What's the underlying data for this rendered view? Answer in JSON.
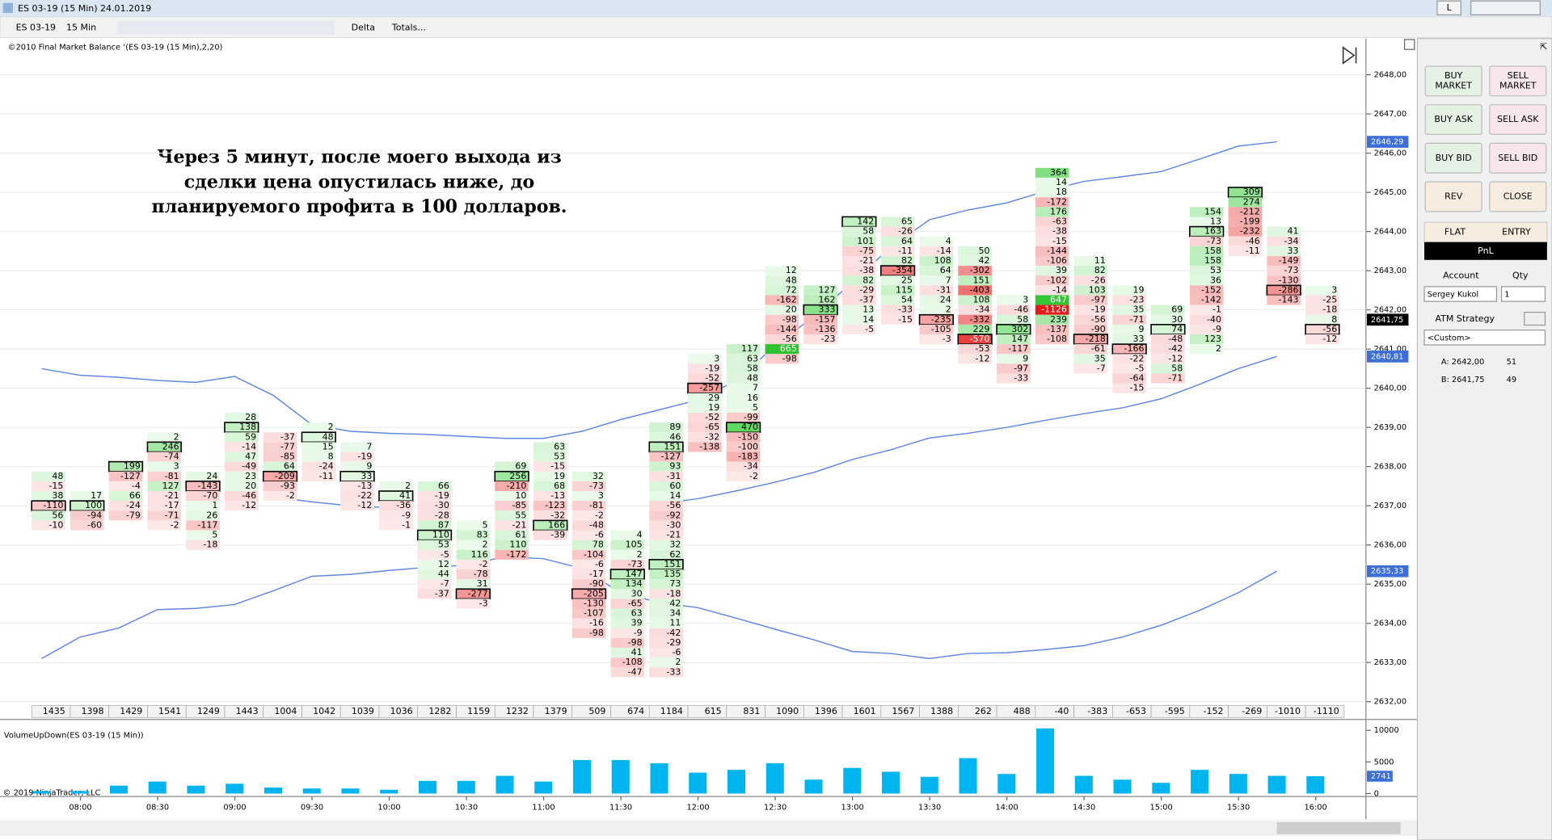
{
  "window": {
    "title": "ES 03-19 (15 Min)  24.01.2019",
    "mode": "L"
  },
  "toolbar": {
    "instrument": "ES 03-19",
    "interval": "15 Min",
    "column": "Delta",
    "totals": "Totals..."
  },
  "chart": {
    "indicator": "©2010 Final Market Balance ‘(ES 03-19 (15 Min),2,20)",
    "annotation": [
      "Через 5 минут, после моего выхода из",
      "сделки цена опустилась ниже, до",
      "планируемого профита в 100 долларов."
    ],
    "ylim": [
      2631.95,
      2648.85
    ],
    "yticks": [
      {
        "value": 2632,
        "label": "2632,00"
      },
      {
        "value": 2633,
        "label": "2633,00"
      },
      {
        "value": 2634,
        "label": "2634,00"
      },
      {
        "value": 2635,
        "label": "2635,00"
      },
      {
        "value": 2636,
        "label": "2636,00"
      },
      {
        "value": 2637,
        "label": "2637,00"
      },
      {
        "value": 2638,
        "label": "2638,00"
      },
      {
        "value": 2639,
        "label": "2639,00"
      },
      {
        "value": 2640,
        "label": "2640,00"
      },
      {
        "value": 2641,
        "label": "2641,00"
      },
      {
        "value": 2642,
        "label": "2642,00"
      },
      {
        "value": 2643,
        "label": "2643,00"
      },
      {
        "value": 2644,
        "label": "2644,00"
      },
      {
        "value": 2645,
        "label": "2645,00"
      },
      {
        "value": 2646,
        "label": "2646,00"
      },
      {
        "value": 2647,
        "label": "2647,00"
      },
      {
        "value": 2648,
        "label": "2648,00"
      }
    ],
    "columns": [
      {
        "high": 2637.75,
        "values": [
          48,
          -15,
          38,
          -110,
          56,
          -10
        ],
        "delta": 1435,
        "volume": 400
      },
      {
        "high": 2637.25,
        "values": [
          17,
          100,
          -94,
          -60
        ],
        "delta": 1398,
        "volume": 400
      },
      {
        "high": 2638.0,
        "values": [
          199,
          -127,
          -4,
          66,
          -24,
          -79
        ],
        "delta": 1429,
        "volume": 1250
      },
      {
        "high": 2638.75,
        "values": [
          2,
          246,
          -74,
          3,
          -81,
          127,
          -21,
          -17,
          -71,
          -2
        ],
        "delta": 1541,
        "volume": 1900
      },
      {
        "high": 2637.75,
        "values": [
          24,
          -143,
          -70,
          1,
          26,
          -117,
          5,
          -18
        ],
        "delta": 1249,
        "volume": 1250
      },
      {
        "high": 2639.25,
        "values": [
          28,
          138,
          59,
          -14,
          47,
          -49,
          23,
          20,
          -46,
          -12
        ],
        "delta": 1443,
        "volume": 1550
      },
      {
        "high": 2638.75,
        "values": [
          -37,
          -77,
          -85,
          64,
          -209,
          -93,
          -2
        ],
        "delta": 1004,
        "volume": 950
      },
      {
        "high": 2639.0,
        "values": [
          2,
          48,
          15,
          8,
          -24,
          -11
        ],
        "delta": 1042,
        "volume": 800
      },
      {
        "high": 2638.5,
        "values": [
          7,
          -19,
          9,
          33,
          -13,
          -22,
          -12
        ],
        "delta": 1039,
        "volume": 800
      },
      {
        "high": 2637.5,
        "values": [
          2,
          41,
          -36,
          -9,
          -1
        ],
        "delta": 1036,
        "volume": 600
      },
      {
        "high": 2637.5,
        "values": [
          66,
          -19,
          -30,
          -28,
          87,
          110,
          53,
          -5,
          12,
          44,
          -7,
          -37
        ],
        "delta": 1282,
        "volume": 2000
      },
      {
        "high": 2636.5,
        "values": [
          5,
          83,
          2,
          116,
          -2,
          -78,
          31,
          -277,
          -3
        ],
        "delta": 1159,
        "volume": 2000
      },
      {
        "high": 2638.0,
        "values": [
          69,
          256,
          -210,
          10,
          -85,
          55,
          -21,
          61,
          110,
          -172
        ],
        "delta": 1232,
        "volume": 2800
      },
      {
        "high": 2638.5,
        "values": [
          63,
          53,
          -15,
          19,
          68,
          -13,
          -123,
          -32,
          166,
          -39
        ],
        "delta": 1379,
        "volume": 1900
      },
      {
        "high": 2637.75,
        "values": [
          32,
          -73,
          3,
          -81,
          -2,
          -48,
          -6,
          78,
          -104,
          -6,
          -17,
          -90,
          -205,
          -130,
          -107,
          -16,
          -98
        ],
        "delta": 509,
        "volume": 5300
      },
      {
        "high": 2636.25,
        "values": [
          4,
          105,
          2,
          -73,
          147,
          134,
          30,
          -65,
          63,
          39,
          -9,
          -98,
          41,
          -108,
          -47
        ],
        "delta": 674,
        "volume": 5300
      },
      {
        "high": 2639.0,
        "values": [
          89,
          46,
          151,
          -127,
          93,
          -31,
          60,
          14,
          -56,
          -92,
          -30,
          -21,
          32,
          62,
          151,
          135,
          73,
          -18,
          42,
          34,
          11,
          -42,
          -29,
          -6,
          2,
          -33
        ],
        "delta": 1184,
        "volume": 4800
      },
      {
        "high": 2640.75,
        "values": [
          3,
          -19,
          -52,
          -257,
          29,
          19,
          -52,
          -65,
          -32,
          -138
        ],
        "delta": 615,
        "volume": 3300
      },
      {
        "high": 2641.0,
        "values": [
          117,
          63,
          58,
          48,
          7,
          16,
          5,
          -99,
          470,
          -150,
          -100,
          -183,
          -34,
          -2
        ],
        "delta": 831,
        "volume": 3750
      },
      {
        "high": 2643.0,
        "values": [
          12,
          48,
          72,
          -162,
          20,
          -98,
          -144,
          -56,
          665,
          -98
        ],
        "delta": 1090,
        "volume": 4800
      },
      {
        "high": 2642.5,
        "values": [
          127,
          162,
          333,
          -157,
          -136,
          -23
        ],
        "delta": 1396,
        "volume": 2200
      },
      {
        "high": 2644.25,
        "values": [
          142,
          58,
          101,
          -75,
          -21,
          -38,
          82,
          -29,
          -37,
          13,
          14,
          -5
        ],
        "delta": 1601,
        "volume": 4050
      },
      {
        "high": 2644.25,
        "values": [
          65,
          -26,
          64,
          -11,
          82,
          -354,
          25,
          115,
          54,
          -33,
          -15
        ],
        "delta": 1567,
        "volume": 3450
      },
      {
        "high": 2643.75,
        "values": [
          4,
          -14,
          108,
          64,
          7,
          -31,
          24,
          2,
          -235,
          -105,
          -3
        ],
        "delta": 1388,
        "volume": 2650
      },
      {
        "high": 2643.5,
        "values": [
          50,
          42,
          -302,
          151,
          -403,
          108,
          -34,
          -332,
          229,
          -570,
          -53,
          -12
        ],
        "delta": 262,
        "volume": 5600
      },
      {
        "high": 2642.25,
        "values": [
          3,
          -46,
          58,
          302,
          147,
          -117,
          9,
          -97,
          -33
        ],
        "delta": 488,
        "volume": 3100
      },
      {
        "high": 2645.5,
        "values": [
          364,
          14,
          18,
          -172,
          176,
          -63,
          -38,
          -15,
          -144,
          -106,
          39,
          -102,
          -14,
          647,
          -1126,
          239,
          -137,
          -108
        ],
        "delta": -40,
        "volume": 10300
      },
      {
        "high": 2643.25,
        "values": [
          11,
          82,
          -26,
          103,
          -97,
          -19,
          -56,
          -90,
          -218,
          -61,
          35,
          -7
        ],
        "delta": -383,
        "volume": 2800
      },
      {
        "high": 2642.5,
        "values": [
          19,
          -23,
          35,
          -71,
          9,
          33,
          -166,
          -22,
          -5,
          -64,
          -15
        ],
        "delta": -653,
        "volume": 2200
      },
      {
        "high": 2642.0,
        "values": [
          69,
          30,
          74,
          -48,
          -42,
          -12,
          58,
          -71
        ],
        "delta": -595,
        "volume": 1700
      },
      {
        "high": 2644.5,
        "values": [
          154,
          13,
          163,
          -73,
          158,
          158,
          53,
          36,
          -152,
          -142,
          -1,
          -40,
          -9,
          123,
          2
        ],
        "delta": -152,
        "volume": 3750
      },
      {
        "high": 2645.0,
        "values": [
          309,
          274,
          -212,
          -199,
          -232,
          -46,
          -11
        ],
        "delta": -269,
        "volume": 3100
      },
      {
        "high": 2644.0,
        "values": [
          41,
          -34,
          33,
          -149,
          -73,
          -130,
          -286,
          -143
        ],
        "delta": -1010,
        "volume": 2800
      },
      {
        "high": 2642.5,
        "values": [
          3,
          -25,
          -18,
          8,
          -56,
          -12
        ],
        "delta": -1110,
        "volume": 2741
      }
    ],
    "bands": [
      {
        "color": "#5f87e3",
        "values": [
          2640.5,
          2640.33,
          2640.28,
          2640.2,
          2640.15,
          2640.3,
          2639.82,
          2639.07,
          2638.9,
          2638.85,
          2638.82,
          2638.77,
          2638.72,
          2638.72,
          2638.9,
          2639.2,
          2639.45,
          2639.7,
          2640.2,
          2641.08,
          2641.83,
          2642.7,
          2643.6,
          2644.3,
          2644.55,
          2644.73,
          2645.03,
          2645.28,
          2645.4,
          2645.53,
          2645.85,
          2646.18,
          2646.29,
          null
        ]
      },
      {
        "color": "#5f87e3",
        "values": [
          null,
          null,
          null,
          null,
          null,
          null,
          2637.23,
          2637.1,
          2637.0,
          2636.95,
          null,
          null,
          null,
          null,
          null,
          null,
          2637.05,
          2637.18,
          2637.38,
          2637.6,
          2637.85,
          2638.18,
          2638.43,
          2638.73,
          2638.85,
          2639.0,
          2639.18,
          2639.35,
          2639.5,
          2639.73,
          2640.1,
          2640.5,
          2640.81,
          null
        ]
      },
      {
        "color": "#5f87e3",
        "values": [
          2633.1,
          2633.65,
          2633.88,
          2634.35,
          2634.38,
          2634.48,
          2634.83,
          2635.2,
          2635.25,
          2635.35,
          2635.43,
          2635.48,
          2635.7,
          2635.65,
          2635.4,
          2634.78,
          2634.53,
          2634.4,
          2634.13,
          2633.85,
          2633.58,
          2633.28,
          2633.23,
          2633.1,
          2633.23,
          2633.25,
          2633.33,
          2633.43,
          2633.65,
          2633.95,
          2634.33,
          2634.78,
          2635.33,
          null
        ]
      }
    ],
    "markers": [
      {
        "value": 2646.29,
        "label": "2646,29",
        "color": "#3d6fd6"
      },
      {
        "value": 2641.75,
        "label": "2641,75",
        "color": "#000000"
      },
      {
        "value": 2640.81,
        "label": "2640,81",
        "color": "#3d6fd6"
      },
      {
        "value": 2635.33,
        "label": "2635,33",
        "color": "#3d6fd6"
      }
    ],
    "time_labels": [
      "08:00",
      "08:30",
      "09:00",
      "09:30",
      "10:00",
      "10:30",
      "11:00",
      "11:30",
      "12:00",
      "12:30",
      "13:00",
      "13:30",
      "14:00",
      "14:30",
      "15:00",
      "15:30",
      "16:00"
    ],
    "volume": {
      "title": "VolumeUpDown(ES 03-19 (15 Min))",
      "ylim": [
        0,
        11250
      ],
      "yticks": [
        0,
        5000,
        10000
      ],
      "color": "#00b4f0",
      "marker_color": "#3d6fd6"
    },
    "copyright": "© 2019 NinjaTrader, LLC"
  },
  "order_panel": {
    "buttons": [
      {
        "lines": [
          "BUY",
          "MARKET"
        ],
        "color": "#e6f1e6"
      },
      {
        "lines": [
          "SELL",
          "MARKET"
        ],
        "color": "#f7e6ea"
      },
      {
        "lines": [
          "BUY ASK"
        ],
        "color": "#e6f1e6"
      },
      {
        "lines": [
          "SELL ASK"
        ],
        "color": "#f7e6ea"
      },
      {
        "lines": [
          "BUY BID"
        ],
        "color": "#e6f1e6"
      },
      {
        "lines": [
          "SELL BID"
        ],
        "color": "#f7e6ea"
      },
      {
        "lines": [
          "REV"
        ],
        "color": "#f6ece0"
      },
      {
        "lines": [
          "CLOSE"
        ],
        "color": "#f6ece0"
      }
    ],
    "tabs": [
      "FLAT",
      "ENTRY"
    ],
    "pnl": "PnL",
    "account_label": "Account",
    "account": "Sergey Kukol",
    "qty_label": "Qty",
    "qty": 1,
    "atm_label": "ATM Strategy",
    "atm": "<Custom>",
    "ask": "A: 2642,00",
    "ask_size": 51,
    "bid": "B: 2641,75",
    "bid_size": 49
  }
}
